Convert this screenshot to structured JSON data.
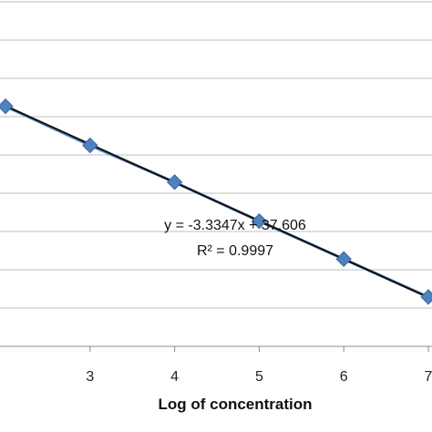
{
  "chart_data": {
    "type": "scatter",
    "title": "",
    "xlabel": "Log of concentration",
    "ylabel": "",
    "xlim": [
      2,
      7
    ],
    "ylim": [
      10,
      40
    ],
    "x_ticks": [
      "3",
      "4",
      "5",
      "6",
      "7"
    ],
    "grid": "horizontal",
    "legend": "none",
    "series": [
      {
        "x": [
          2,
          3,
          4,
          5,
          6,
          7
        ],
        "y": [
          30.9,
          27.5,
          24.3,
          20.9,
          17.6,
          14.3
        ],
        "color": "#4f81bd",
        "marker": "diamond"
      }
    ],
    "trendline": {
      "slope": -3.3347,
      "intercept": 37.606,
      "color": "#111111",
      "equation": "y = -3.3347x + 37.606",
      "r_squared": "R² = 0.9997"
    }
  }
}
